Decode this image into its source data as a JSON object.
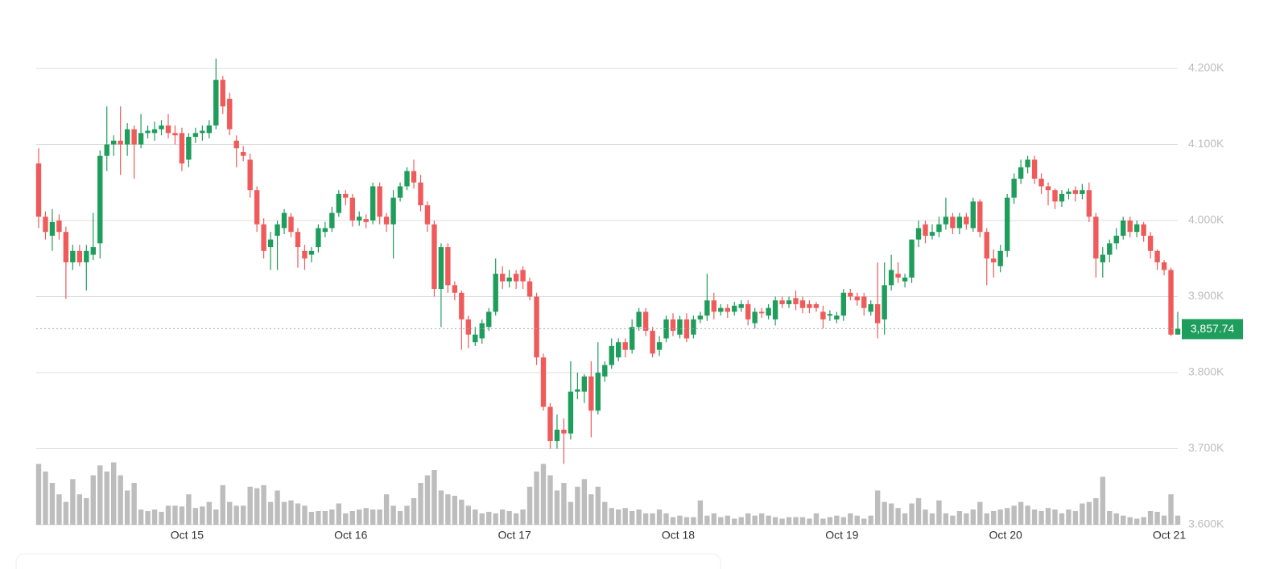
{
  "chart_data": {
    "type": "candlestick",
    "categories": [
      null,
      null,
      null,
      null,
      null,
      null,
      null,
      null,
      null,
      null,
      null,
      null,
      null,
      null,
      null,
      null,
      null,
      null,
      null,
      null,
      null,
      null,
      "Oct 15",
      null,
      null,
      null,
      null,
      null,
      null,
      null,
      null,
      null,
      null,
      null,
      null,
      null,
      null,
      null,
      null,
      null,
      null,
      null,
      null,
      null,
      null,
      null,
      "Oct 16",
      null,
      null,
      null,
      null,
      null,
      null,
      null,
      null,
      null,
      null,
      null,
      null,
      null,
      null,
      null,
      null,
      null,
      null,
      null,
      null,
      null,
      null,
      null,
      "Oct 17",
      null,
      null,
      null,
      null,
      null,
      null,
      null,
      null,
      null,
      null,
      null,
      null,
      null,
      null,
      null,
      null,
      null,
      null,
      null,
      null,
      null,
      null,
      null,
      "Oct 18",
      null,
      null,
      null,
      null,
      null,
      null,
      null,
      null,
      null,
      null,
      null,
      null,
      null,
      null,
      null,
      null,
      null,
      null,
      null,
      null,
      null,
      null,
      null,
      "Oct 19",
      null,
      null,
      null,
      null,
      null,
      null,
      null,
      null,
      null,
      null,
      null,
      null,
      null,
      null,
      null,
      null,
      null,
      null,
      null,
      null,
      null,
      null,
      null,
      "Oct 20",
      null,
      null,
      null,
      null,
      null,
      null,
      null,
      null,
      null,
      null,
      null,
      null,
      null,
      null,
      null,
      null,
      null,
      null,
      null,
      null,
      null,
      null,
      null,
      "Oct 21",
      null
    ],
    "open": [
      4075,
      4005,
      3980,
      4000,
      3985,
      3945,
      3960,
      3945,
      3955,
      3970,
      4085,
      4100,
      4105,
      4100,
      4120,
      4100,
      4115,
      4115,
      4120,
      4125,
      4115,
      4115,
      4080,
      4110,
      4115,
      4115,
      4125,
      4185,
      4160,
      4105,
      4090,
      4080,
      4040,
      3995,
      3965,
      3980,
      3990,
      4005,
      3985,
      3960,
      3955,
      3965,
      3985,
      3990,
      4010,
      4035,
      4030,
      4000,
      4002,
      4000,
      4045,
      4005,
      3995,
      4030,
      4045,
      4065,
      4050,
      4020,
      3995,
      3910,
      3965,
      3915,
      3905,
      3870,
      3840,
      3845,
      3860,
      3880,
      3930,
      3920,
      3930,
      3935,
      3920,
      3900,
      3820,
      3755,
      3710,
      3725,
      3720,
      3775,
      3775,
      3795,
      3750,
      3795,
      3810,
      3820,
      3840,
      3830,
      3860,
      3880,
      3855,
      3830,
      3845,
      3870,
      3850,
      3870,
      3850,
      3870,
      3875,
      3895,
      3880,
      3885,
      3880,
      3885,
      3890,
      3865,
      3880,
      3875,
      3870,
      3895,
      3890,
      3898,
      3895,
      3890,
      3890,
      3880,
      3875,
      3870,
      3875,
      3905,
      3900,
      3900,
      3880,
      3890,
      3870,
      3915,
      3930,
      3920,
      3925,
      3975,
      3995,
      3980,
      3985,
      3995,
      4005,
      3990,
      4005,
      3990,
      4025,
      3985,
      3950,
      3940,
      3960,
      4030,
      4055,
      4070,
      4080,
      4055,
      4045,
      4040,
      4025,
      4035,
      4040,
      4035,
      4040,
      4005,
      3945,
      3955,
      3970,
      3980,
      4000,
      3985,
      3995,
      3980,
      3960,
      3945,
      3935,
      3850
    ],
    "high": [
      4095,
      4012,
      4015,
      4008,
      3992,
      3968,
      3968,
      3968,
      4010,
      4092,
      4150,
      4112,
      4150,
      4128,
      4125,
      4140,
      4125,
      4130,
      4132,
      4140,
      4125,
      4122,
      4115,
      4122,
      4125,
      4132,
      4213,
      4190,
      4168,
      4112,
      4098,
      4088,
      4045,
      4003,
      3985,
      4000,
      4015,
      4010,
      3990,
      3968,
      3965,
      3995,
      3998,
      4018,
      4040,
      4040,
      4035,
      4012,
      4008,
      4050,
      4050,
      4010,
      4040,
      4050,
      4070,
      4080,
      4060,
      4025,
      4000,
      3970,
      3970,
      3920,
      3908,
      3875,
      3860,
      3870,
      3885,
      3950,
      3940,
      3935,
      3935,
      3940,
      3925,
      3905,
      3825,
      3760,
      3745,
      3740,
      3815,
      3800,
      3798,
      3815,
      3840,
      3815,
      3845,
      3845,
      3845,
      3870,
      3885,
      3885,
      3860,
      3848,
      3875,
      3878,
      3875,
      3878,
      3875,
      3880,
      3930,
      3905,
      3890,
      3890,
      3893,
      3895,
      3895,
      3885,
      3885,
      3890,
      3900,
      3900,
      3900,
      3908,
      3900,
      3895,
      3893,
      3888,
      3882,
      3880,
      3910,
      3910,
      3905,
      3905,
      3895,
      3945,
      3945,
      3955,
      3945,
      3930,
      3975,
      4000,
      4000,
      3995,
      4005,
      4030,
      4010,
      4010,
      4010,
      4030,
      4028,
      3990,
      3962,
      3968,
      4035,
      4062,
      4080,
      4085,
      4085,
      4062,
      4050,
      4042,
      4040,
      4042,
      4045,
      4048,
      4050,
      4010,
      3965,
      3975,
      3990,
      4005,
      4005,
      4000,
      3998,
      3985,
      3962,
      3948,
      3938,
      3880
    ],
    "low": [
      3990,
      3975,
      3960,
      3975,
      3897,
      3935,
      3940,
      3908,
      3948,
      3950,
      4065,
      4085,
      4060,
      4085,
      4055,
      4095,
      4108,
      4105,
      4112,
      4108,
      4100,
      4065,
      4070,
      4102,
      4105,
      4108,
      4120,
      4140,
      4112,
      4070,
      4078,
      4030,
      3985,
      3950,
      3935,
      3935,
      3982,
      3978,
      3938,
      3935,
      3945,
      3958,
      3978,
      3985,
      4005,
      4020,
      3992,
      3993,
      3990,
      3995,
      3995,
      3985,
      3950,
      4025,
      4040,
      4042,
      4012,
      3985,
      3900,
      3860,
      3905,
      3895,
      3830,
      3832,
      3835,
      3838,
      3855,
      3875,
      3910,
      3912,
      3910,
      3910,
      3895,
      3810,
      3750,
      3700,
      3700,
      3680,
      3712,
      3765,
      3760,
      3715,
      3745,
      3788,
      3805,
      3815,
      3820,
      3825,
      3855,
      3848,
      3820,
      3822,
      3840,
      3848,
      3845,
      3840,
      3845,
      3865,
      3868,
      3870,
      3875,
      3872,
      3875,
      3880,
      3862,
      3858,
      3872,
      3870,
      3862,
      3885,
      3885,
      3882,
      3878,
      3878,
      3880,
      3858,
      3868,
      3865,
      3868,
      3895,
      3888,
      3875,
      3875,
      3845,
      3850,
      3908,
      3918,
      3912,
      3918,
      3965,
      3970,
      3975,
      3978,
      3988,
      3982,
      3982,
      3988,
      3985,
      3978,
      3915,
      3925,
      3932,
      3952,
      4022,
      4048,
      4062,
      4048,
      4035,
      4020,
      4015,
      4018,
      4028,
      4025,
      4028,
      3998,
      3925,
      3925,
      3945,
      3962,
      3975,
      3978,
      3978,
      3972,
      3950,
      3935,
      3928,
      3848,
      3852
    ],
    "close": [
      4005,
      3985,
      3998,
      3985,
      3945,
      3960,
      3945,
      3960,
      3965,
      4085,
      4100,
      4105,
      4100,
      4120,
      4100,
      4115,
      4118,
      4120,
      4125,
      4115,
      4112,
      4075,
      4110,
      4115,
      4118,
      4125,
      4185,
      4150,
      4120,
      4095,
      4085,
      4040,
      3995,
      3960,
      3975,
      3995,
      4010,
      3985,
      3965,
      3950,
      3960,
      3990,
      3990,
      4010,
      4035,
      4030,
      4000,
      4005,
      3998,
      4045,
      4005,
      3995,
      4030,
      4045,
      4065,
      4050,
      4020,
      3995,
      3910,
      3965,
      3915,
      3905,
      3870,
      3850,
      3850,
      3865,
      3880,
      3930,
      3920,
      3925,
      3920,
      3920,
      3900,
      3820,
      3755,
      3710,
      3725,
      3720,
      3775,
      3778,
      3795,
      3750,
      3800,
      3810,
      3835,
      3840,
      3830,
      3860,
      3880,
      3855,
      3825,
      3840,
      3870,
      3855,
      3870,
      3845,
      3870,
      3875,
      3895,
      3880,
      3885,
      3880,
      3888,
      3890,
      3870,
      3880,
      3878,
      3885,
      3895,
      3890,
      3895,
      3890,
      3885,
      3885,
      3885,
      3870,
      3877,
      3875,
      3905,
      3900,
      3895,
      3885,
      3890,
      3865,
      3915,
      3935,
      3925,
      3925,
      3975,
      3990,
      3980,
      3985,
      3995,
      4005,
      3990,
      4005,
      3995,
      4025,
      3985,
      3950,
      3945,
      3960,
      4030,
      4055,
      4070,
      4080,
      4055,
      4045,
      4040,
      4025,
      4035,
      4038,
      4035,
      4040,
      4005,
      3950,
      3955,
      3970,
      3980,
      4000,
      3985,
      3995,
      3980,
      3960,
      3945,
      3935,
      3850,
      3857.74
    ],
    "volume": [
      80,
      70,
      55,
      40,
      30,
      60,
      40,
      35,
      65,
      78,
      70,
      82,
      65,
      45,
      55,
      20,
      18,
      20,
      17,
      25,
      25,
      24,
      40,
      22,
      24,
      30,
      20,
      52,
      30,
      25,
      25,
      50,
      48,
      52,
      30,
      45,
      30,
      32,
      28,
      25,
      17,
      18,
      18,
      20,
      28,
      15,
      18,
      20,
      22,
      20,
      20,
      40,
      25,
      18,
      25,
      35,
      55,
      65,
      72,
      45,
      40,
      38,
      33,
      25,
      20,
      15,
      17,
      15,
      20,
      18,
      15,
      20,
      50,
      70,
      80,
      65,
      45,
      55,
      30,
      50,
      60,
      40,
      50,
      30,
      22,
      20,
      22,
      18,
      20,
      15,
      15,
      20,
      15,
      10,
      12,
      10,
      10,
      32,
      12,
      15,
      10,
      12,
      8,
      10,
      15,
      12,
      15,
      12,
      10,
      8,
      10,
      10,
      10,
      8,
      15,
      8,
      10,
      12,
      10,
      15,
      12,
      8,
      12,
      45,
      30,
      28,
      22,
      15,
      28,
      35,
      20,
      15,
      32,
      15,
      12,
      18,
      15,
      20,
      30,
      15,
      18,
      20,
      22,
      25,
      30,
      25,
      20,
      18,
      22,
      20,
      15,
      20,
      18,
      28,
      30,
      35,
      63,
      18,
      15,
      12,
      10,
      8,
      10,
      18,
      17,
      12,
      40,
      12
    ],
    "up_color": "#1f9d5c",
    "down_color": "#ef5b5b",
    "volume_color": "#bdbdbd",
    "ylim": [
      3600,
      4200
    ],
    "yticks": [
      {
        "value": 3600,
        "label": "3.600K"
      },
      {
        "value": 3700,
        "label": "3.700K"
      },
      {
        "value": 3800,
        "label": "3.800K"
      },
      {
        "value": 3900,
        "label": "3.900K"
      },
      {
        "value": 4000,
        "label": "4.000K"
      },
      {
        "value": 4100,
        "label": "4.100K"
      },
      {
        "value": 4200,
        "label": "4.200K"
      }
    ],
    "y2lim": [
      0,
      600
    ],
    "grid": true,
    "last_price": 3857.74,
    "last_price_label": "3,857.74"
  }
}
